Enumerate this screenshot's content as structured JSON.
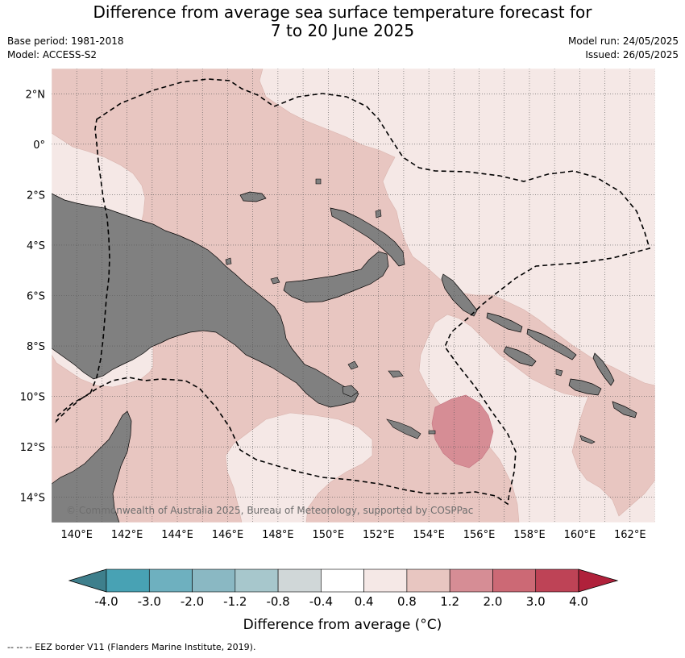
{
  "header": {
    "title_line1": "Difference from average sea surface temperature forecast for",
    "title_line2": "7 to 20 June 2025",
    "base_period": "Base period: 1981-2018",
    "model": "Model: ACCESS-S2",
    "model_run": "Model run: 24/05/2025",
    "issued": "Issued: 26/05/2025"
  },
  "map": {
    "lon_range": [
      139,
      163
    ],
    "lat_range": [
      -15,
      3
    ],
    "lat_labels": [
      {
        "lat": 2,
        "text": "2°N"
      },
      {
        "lat": 0,
        "text": "0°"
      },
      {
        "lat": -2,
        "text": "2°S"
      },
      {
        "lat": -4,
        "text": "4°S"
      },
      {
        "lat": -6,
        "text": "6°S"
      },
      {
        "lat": -8,
        "text": "8°S"
      },
      {
        "lat": -10,
        "text": "10°S"
      },
      {
        "lat": -12,
        "text": "12°S"
      },
      {
        "lat": -14,
        "text": "14°S"
      }
    ],
    "lon_labels": [
      {
        "lon": 140,
        "text": "140°E"
      },
      {
        "lon": 142,
        "text": "142°E"
      },
      {
        "lon": 144,
        "text": "144°E"
      },
      {
        "lon": 146,
        "text": "146°E"
      },
      {
        "lon": 148,
        "text": "148°E"
      },
      {
        "lon": 150,
        "text": "150°E"
      },
      {
        "lon": 152,
        "text": "152°E"
      },
      {
        "lon": 154,
        "text": "154°E"
      },
      {
        "lon": 156,
        "text": "156°E"
      },
      {
        "lon": 158,
        "text": "158°E"
      },
      {
        "lon": 160,
        "text": "160°E"
      },
      {
        "lon": 162,
        "text": "162°E"
      }
    ],
    "colors": {
      "land": "#808080",
      "band_0_4_0_8": "#f5e8e6",
      "band_0_8_1_2": "#e8c6c1",
      "band_1_2_2_0": "#d68d95",
      "eez_line": "#000000",
      "grid": "#555555"
    },
    "copyright": "© Commonwealth of Australia 2025, Bureau of Meteorology, supported by COSPPac"
  },
  "colorbar": {
    "tick_labels": [
      "-4.0",
      "-3.0",
      "-2.0",
      "-1.2",
      "-0.8",
      "-0.4",
      "0.4",
      "0.8",
      "1.2",
      "2.0",
      "3.0",
      "4.0"
    ],
    "colors": [
      "#3e7f8c",
      "#48a2b4",
      "#6eb0bf",
      "#8ab8c3",
      "#a7c7cc",
      "#d0d7d8",
      "#ffffff",
      "#f5e8e6",
      "#e8c6c1",
      "#d68d95",
      "#cc6975",
      "#be4356",
      "#b0213b"
    ],
    "label": "Difference from average (°C)"
  },
  "footnote": "--  --  -- EEZ border V11 (Flanders Marine Institute, 2019)."
}
